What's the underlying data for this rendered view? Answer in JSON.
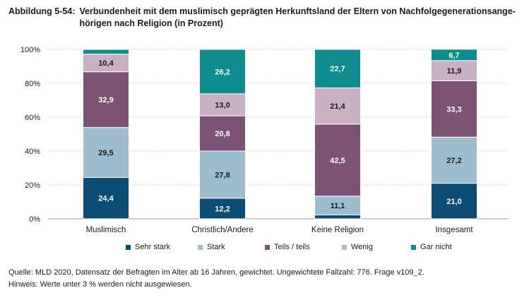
{
  "figure_label": "Abbildung 5-54:",
  "figure_title": "Verbundenheit mit dem muslimisch geprägten Herkunftsland der Eltern von Nachfolgegenerationsange­hörigen nach Religion (in Prozent)",
  "chart_data": {
    "type": "bar",
    "stacked": true,
    "categories": [
      "Muslimisch",
      "Christlich/Andere",
      "Keine Religion",
      "Insgesamt"
    ],
    "series": [
      {
        "name": "Sehr stark",
        "color": "#0b4d75",
        "values": [
          24.4,
          12.2,
          2.3,
          21.0
        ],
        "labels": [
          "24,4",
          "12,2",
          "",
          "21,0"
        ]
      },
      {
        "name": "Stark",
        "color": "#9dbccc",
        "values": [
          29.5,
          27.8,
          11.1,
          27.2
        ],
        "labels": [
          "29,5",
          "27,8",
          "11,1",
          "27,2"
        ]
      },
      {
        "name": "Teils / teils",
        "color": "#7c5275",
        "values": [
          32.9,
          20.8,
          42.5,
          33.3
        ],
        "labels": [
          "32,9",
          "20,8",
          "42,5",
          "33,3"
        ]
      },
      {
        "name": "Wenig",
        "color": "#c9b0c3",
        "values": [
          10.4,
          13.0,
          21.4,
          11.9
        ],
        "labels": [
          "10,4",
          "13,0",
          "21,4",
          "11,9"
        ]
      },
      {
        "name": "Gar nicht",
        "color": "#0e8c8f",
        "values": [
          2.8,
          26.2,
          22.7,
          6.7
        ],
        "labels": [
          "",
          "26,2",
          "22,7",
          "6,7"
        ]
      }
    ],
    "yticks": [
      "0%",
      "20%",
      "40%",
      "60%",
      "80%",
      "100%"
    ],
    "ylim": [
      0,
      100
    ],
    "legend_position": "bottom",
    "grid": true
  },
  "footer": {
    "source": "Quelle: MLD 2020, Datensatz der Befragten im Alter ab 16 Jahren, gewichtet. Ungewichtete Fallzahl: 776. Frage v109_2.",
    "note": "Hinweis: Werte unter 3 % werden nicht ausgewiesen."
  }
}
